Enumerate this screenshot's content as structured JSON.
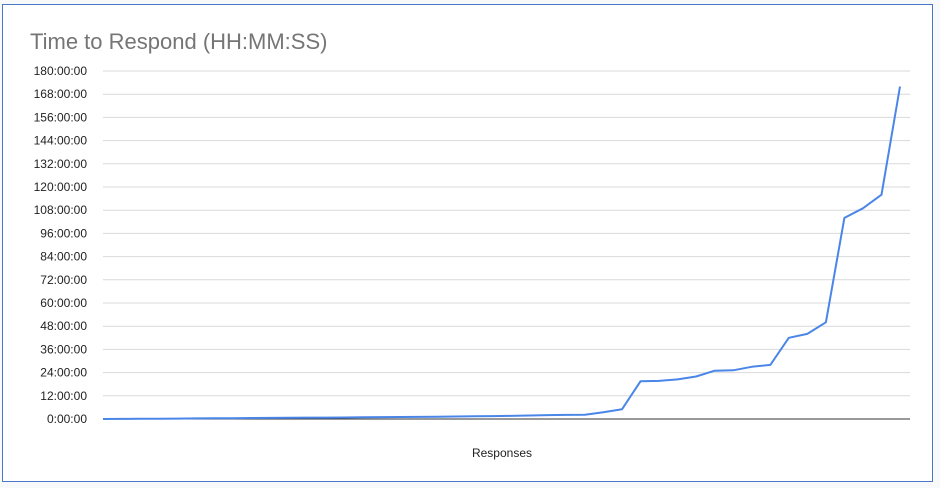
{
  "chart_data": {
    "type": "line",
    "title": "Time to Respond (HH:MM:SS)",
    "xlabel": "Responses",
    "ylabel": "",
    "ylim": [
      0,
      180
    ],
    "y_unit": "hours",
    "y_ticks": [
      0,
      12,
      24,
      36,
      48,
      60,
      72,
      84,
      96,
      108,
      120,
      132,
      144,
      156,
      168,
      180
    ],
    "y_tick_labels": [
      "0:00:00",
      "12:00:00",
      "24:00:00",
      "36:00:00",
      "48:00:00",
      "60:00:00",
      "72:00:00",
      "84:00:00",
      "96:00:00",
      "108:00:00",
      "120:00:00",
      "132:00:00",
      "144:00:00",
      "156:00:00",
      "168:00:00",
      "180:00:00"
    ],
    "grid": true,
    "legend": "none",
    "line_color": "#4a86e8",
    "series": [
      {
        "values": [
          0,
          0.05,
          0.1,
          0.15,
          0.2,
          0.3,
          0.35,
          0.4,
          0.5,
          0.55,
          0.6,
          0.7,
          0.75,
          0.8,
          0.9,
          1.0,
          1.05,
          1.1,
          1.2,
          1.3,
          1.4,
          1.5,
          1.6,
          1.8,
          2.0,
          2.1,
          2.2,
          3.5,
          5.0,
          19.5,
          19.7,
          20.5,
          22,
          25,
          25.2,
          27,
          28,
          42,
          44,
          50,
          104,
          109,
          116,
          172
        ]
      }
    ]
  }
}
